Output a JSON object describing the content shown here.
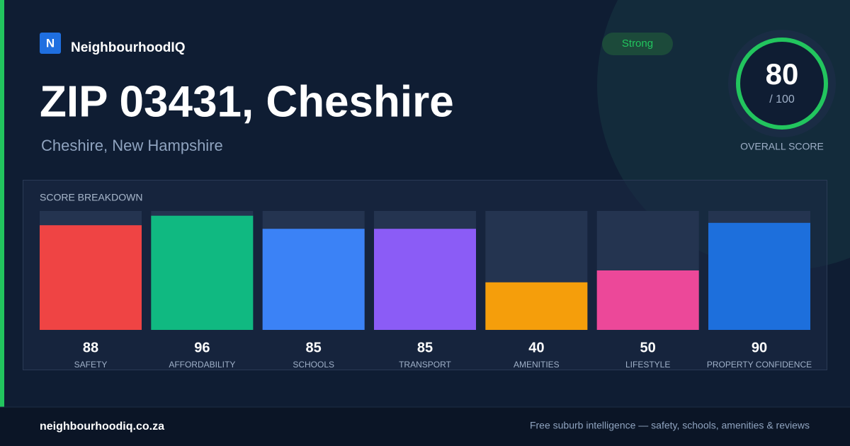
{
  "brand": {
    "logo": "N",
    "name": "NeighbourhoodIQ"
  },
  "badge": "Strong",
  "title": "ZIP 03431, Cheshire",
  "subtitle": "Cheshire, New Hampshire",
  "score": {
    "value": 80,
    "denominator": "/ 100",
    "label": "OVERALL SCORE"
  },
  "breakdown": {
    "title": "SCORE BREAKDOWN",
    "ylim": [
      0,
      100
    ],
    "categories": [
      "SAFETY",
      "AFFORDABILITY",
      "SCHOOLS",
      "TRANSPORT",
      "AMENITIES",
      "LIFESTYLE",
      "PROPERTY CONFIDENCE"
    ],
    "values": [
      88,
      96,
      85,
      85,
      40,
      50,
      90
    ],
    "colors": [
      "#ef4444",
      "#10b981",
      "#3b82f6",
      "#8b5cf6",
      "#f59e0b",
      "#ec4899",
      "#1d6fdc"
    ]
  },
  "footer": {
    "url": "neighbourhoodiq.co.za",
    "tagline": "Free suburb intelligence — safety, schools, amenities & reviews"
  }
}
